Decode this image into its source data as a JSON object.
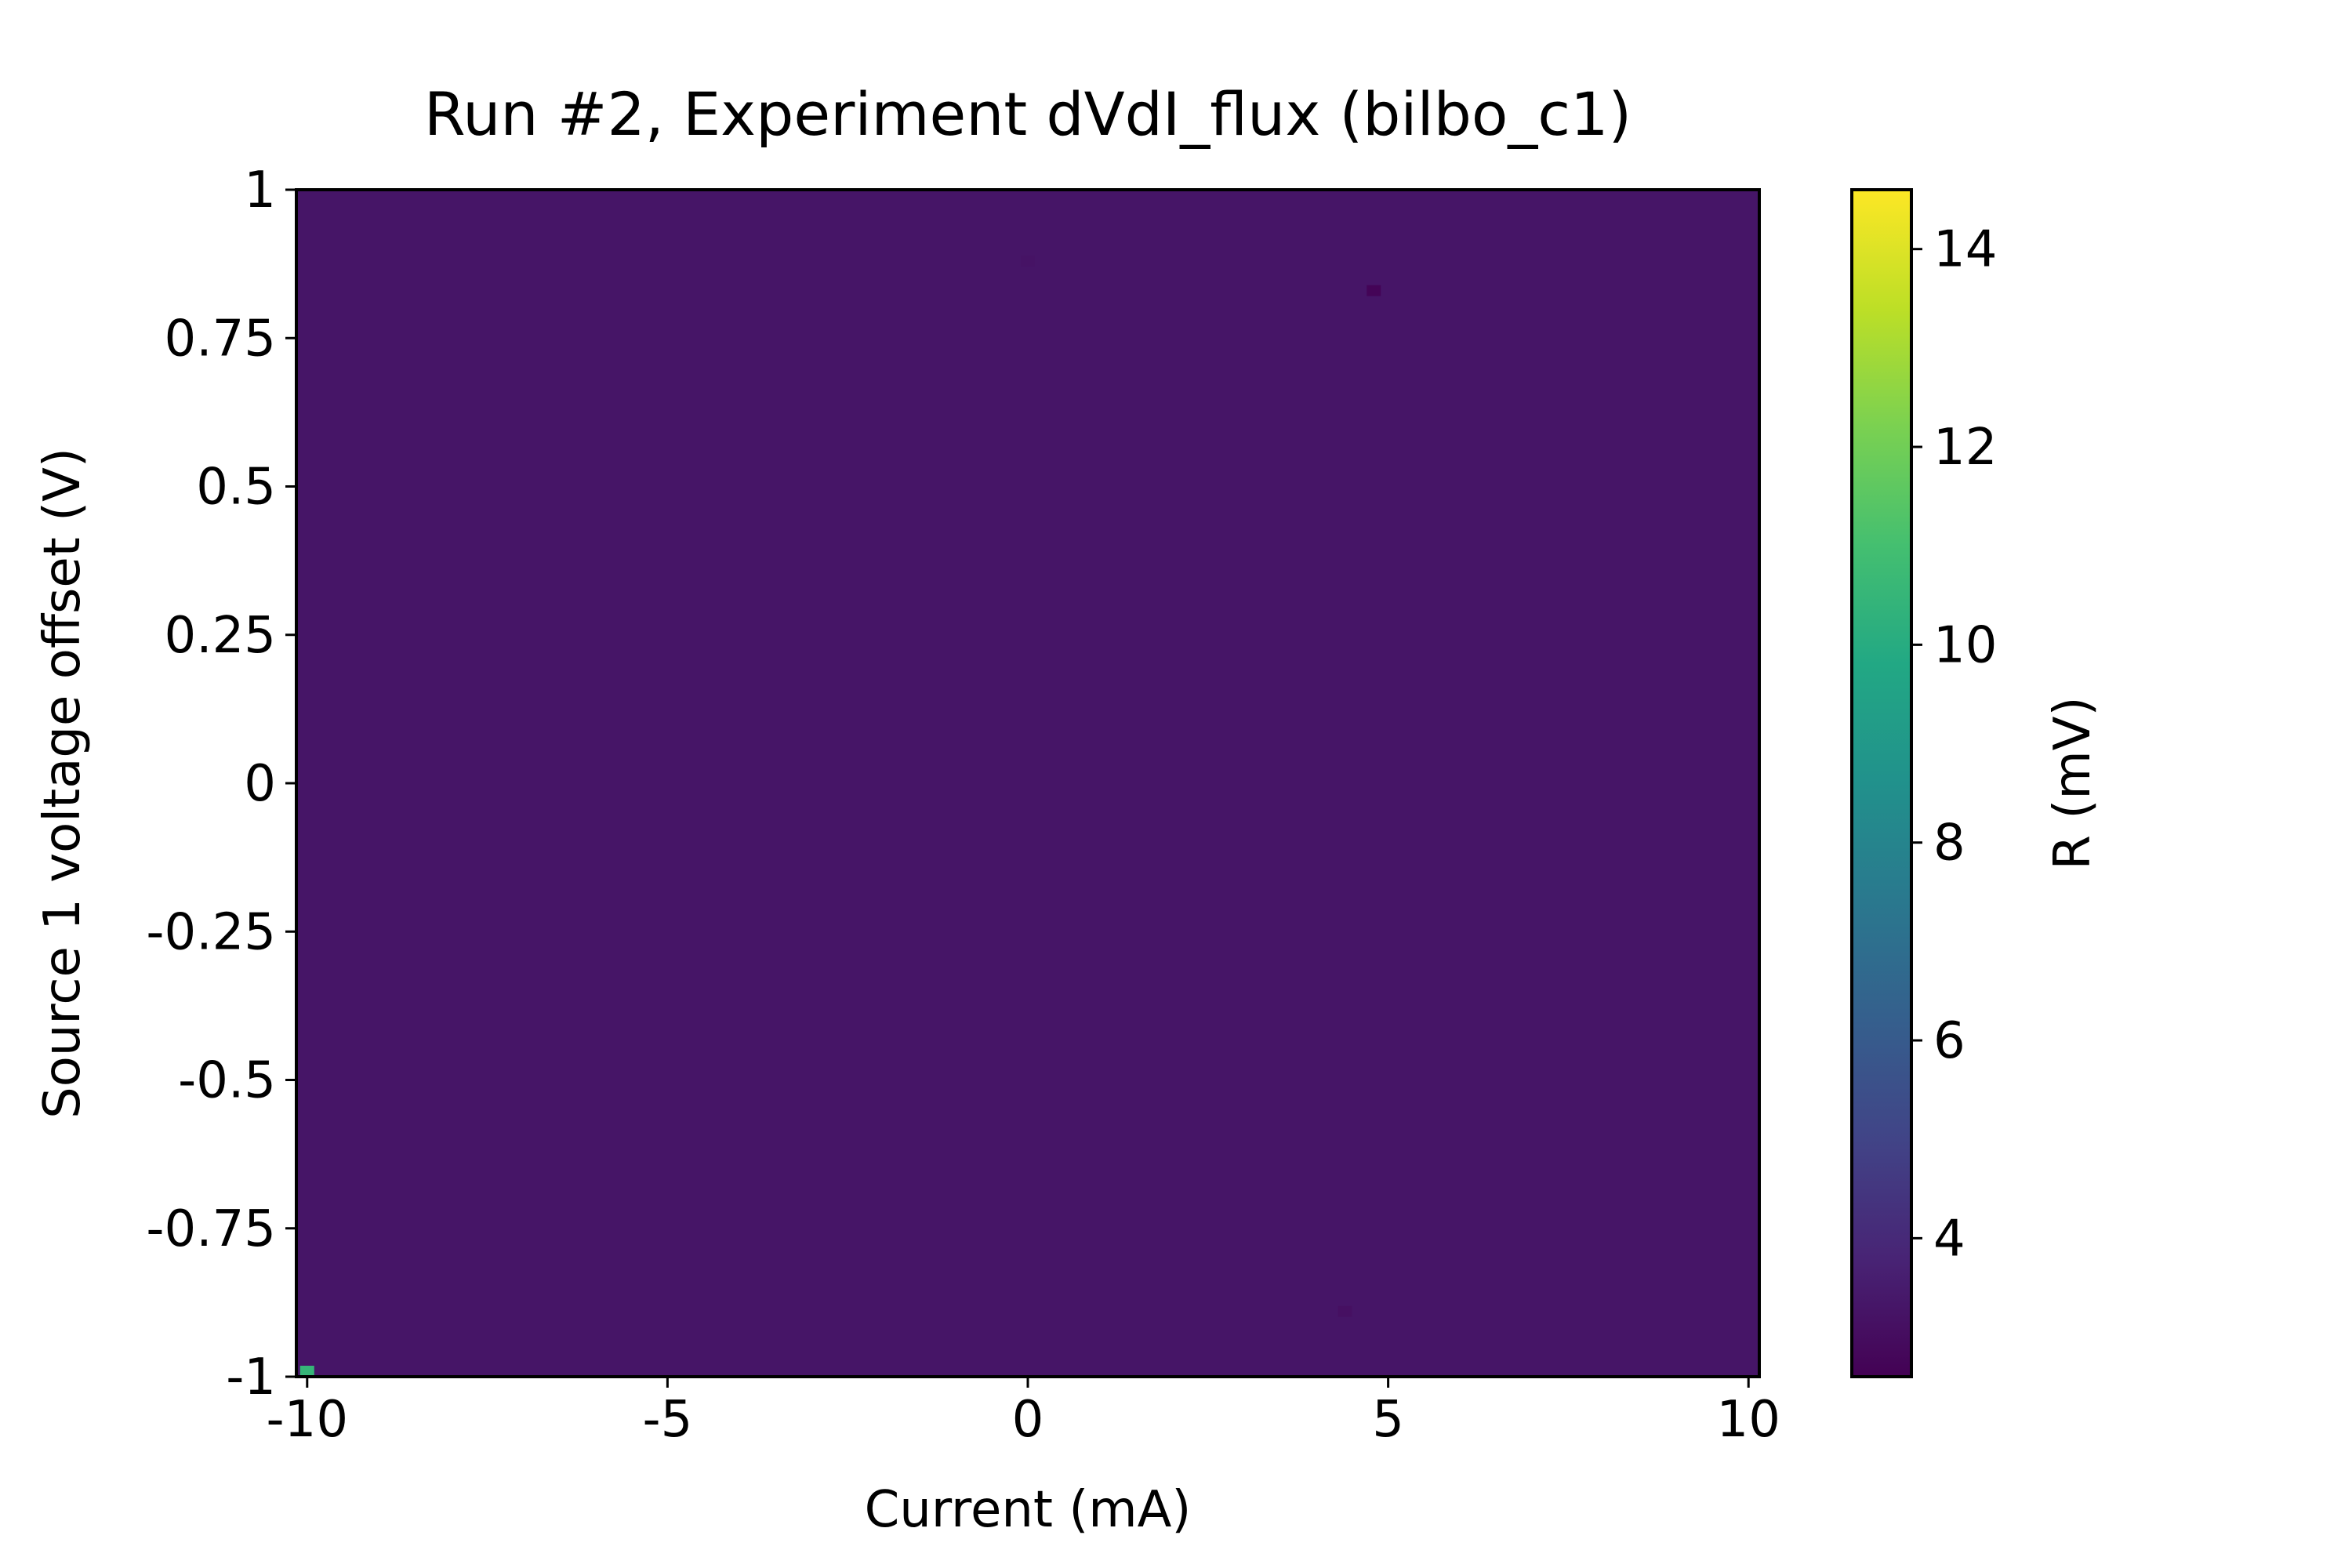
{
  "chart_data": {
    "type": "heatmap",
    "title": "Run #2, Experiment dVdI_flux (bilbo_c1)",
    "xlabel": "Current (mA)",
    "ylabel": "Source 1 voltage offset (V)",
    "xlim": [
      -10.15,
      10.15
    ],
    "ylim": [
      -1.0,
      1.0
    ],
    "x_ticks": [
      {
        "value": -10,
        "label": "-10"
      },
      {
        "value": -5,
        "label": "-5"
      },
      {
        "value": 0,
        "label": "0"
      },
      {
        "value": 5,
        "label": "5"
      },
      {
        "value": 10,
        "label": "10"
      }
    ],
    "y_ticks": [
      {
        "value": 1,
        "label": "1"
      },
      {
        "value": 0.75,
        "label": "0.75"
      },
      {
        "value": 0.5,
        "label": "0.5"
      },
      {
        "value": 0.25,
        "label": "0.25"
      },
      {
        "value": 0,
        "label": "0"
      },
      {
        "value": -0.25,
        "label": "-0.25"
      },
      {
        "value": -0.5,
        "label": "-0.5"
      },
      {
        "value": -0.75,
        "label": "-0.75"
      },
      {
        "value": -1,
        "label": "-1"
      }
    ],
    "colorbar": {
      "label": "R (mV)",
      "colormap": "viridis",
      "range": [
        2.6,
        14.6
      ],
      "ticks": [
        {
          "value": 4,
          "label": "4"
        },
        {
          "value": 6,
          "label": "6"
        },
        {
          "value": 8,
          "label": "8"
        },
        {
          "value": 10,
          "label": "10"
        },
        {
          "value": 12,
          "label": "12"
        },
        {
          "value": 14,
          "label": "14"
        }
      ]
    },
    "background_value": 3.3,
    "features": [
      {
        "x": -10.0,
        "y": -1.0,
        "value": 10.5
      },
      {
        "x": 4.8,
        "y": 0.83,
        "value": 2.7
      },
      {
        "x": 4.4,
        "y": -0.89,
        "value": 3.1
      },
      {
        "x": 0.0,
        "y": 0.88,
        "value": 3.2
      }
    ],
    "grid": false
  }
}
